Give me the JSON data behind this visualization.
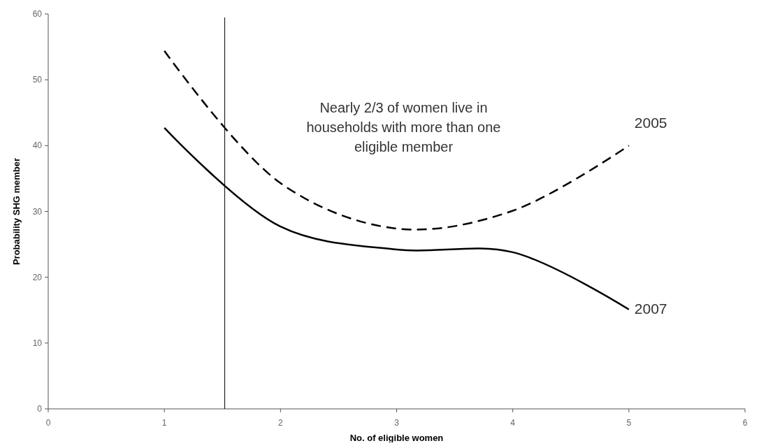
{
  "chart_data": {
    "type": "line",
    "xlabel": "No. of eligible women",
    "ylabel": "Probability SHG member",
    "x": [
      1,
      2,
      3,
      4,
      5
    ],
    "series": [
      {
        "name": "2005",
        "color": "#000000",
        "line_style": "dashed",
        "values": [
          54.4,
          34.3,
          27.4,
          30.1,
          40.0
        ]
      },
      {
        "name": "2007",
        "color": "#000000",
        "line_style": "solid",
        "values": [
          42.7,
          27.7,
          24.2,
          23.8,
          15.1
        ]
      }
    ],
    "xlim": [
      0,
      6
    ],
    "xticks": [
      0,
      1,
      2,
      3,
      4,
      5,
      6
    ],
    "ylim": [
      0,
      60
    ],
    "yticks": [
      0,
      10,
      20,
      30,
      40,
      50,
      60
    ],
    "grid": false,
    "marker": "none",
    "ref_lines": [
      {
        "axis": "x",
        "value": 1.52,
        "color": "#000000"
      }
    ],
    "annotations": [
      "Nearly 2/3 of women live in\nhouseholds with more than one\neligible member"
    ]
  }
}
